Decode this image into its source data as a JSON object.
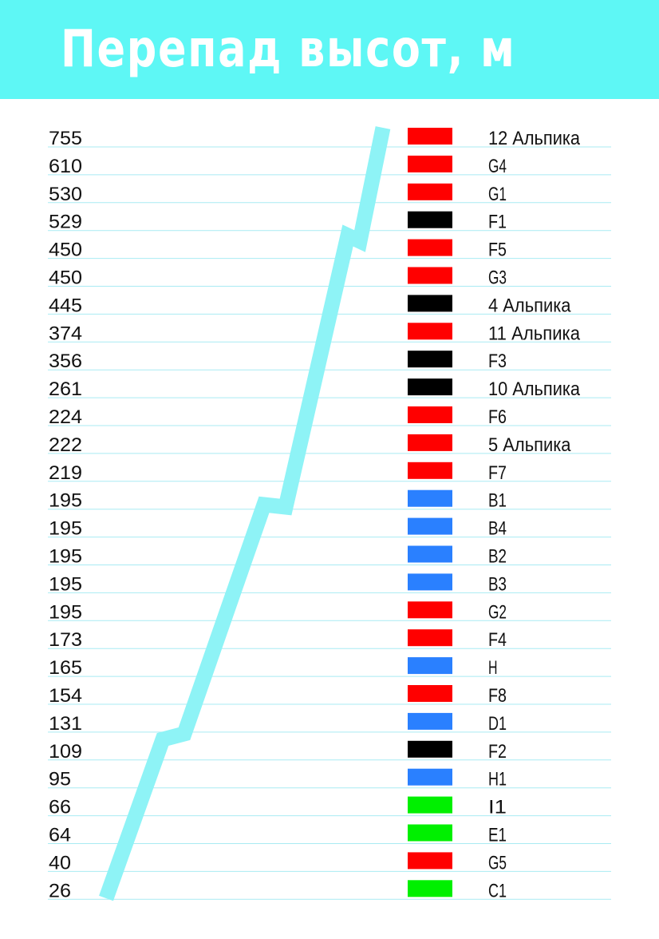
{
  "title": "Перепад высот, м",
  "colors": {
    "header_bg": "#5ef7f5",
    "title_text": "#ffffff",
    "profile_line": "#8ef3f6",
    "row_rule": "#a9ebf3",
    "red": "#ff0000",
    "black": "#000000",
    "blue": "#2a80ff",
    "green": "#00f000"
  },
  "chart_data": {
    "type": "table",
    "title": "Перепад высот, м",
    "columns": [
      "value",
      "difficulty_color",
      "trail"
    ],
    "rows": [
      {
        "value": 755,
        "color": "red",
        "label": "12 Альпика"
      },
      {
        "value": 610,
        "color": "red",
        "label": "G4"
      },
      {
        "value": 530,
        "color": "red",
        "label": "G1"
      },
      {
        "value": 529,
        "color": "black",
        "label": "F1"
      },
      {
        "value": 450,
        "color": "red",
        "label": "F5"
      },
      {
        "value": 450,
        "color": "red",
        "label": "G3"
      },
      {
        "value": 445,
        "color": "black",
        "label": "4 Альпика"
      },
      {
        "value": 374,
        "color": "red",
        "label": "11 Альпика"
      },
      {
        "value": 356,
        "color": "black",
        "label": "F3"
      },
      {
        "value": 261,
        "color": "black",
        "label": "10 Альпика"
      },
      {
        "value": 224,
        "color": "red",
        "label": "F6"
      },
      {
        "value": 222,
        "color": "red",
        "label": "5 Альпика"
      },
      {
        "value": 219,
        "color": "red",
        "label": "F7"
      },
      {
        "value": 195,
        "color": "blue",
        "label": "B1"
      },
      {
        "value": 195,
        "color": "blue",
        "label": "B4"
      },
      {
        "value": 195,
        "color": "blue",
        "label": "B2"
      },
      {
        "value": 195,
        "color": "blue",
        "label": "B3"
      },
      {
        "value": 195,
        "color": "red",
        "label": "G2"
      },
      {
        "value": 173,
        "color": "red",
        "label": "F4"
      },
      {
        "value": 165,
        "color": "blue",
        "label": "H"
      },
      {
        "value": 154,
        "color": "red",
        "label": "F8"
      },
      {
        "value": 131,
        "color": "blue",
        "label": "D1"
      },
      {
        "value": 109,
        "color": "black",
        "label": "F2"
      },
      {
        "value": 95,
        "color": "blue",
        "label": "H1"
      },
      {
        "value": 66,
        "color": "green",
        "label": "I1"
      },
      {
        "value": 64,
        "color": "green",
        "label": "E1"
      },
      {
        "value": 40,
        "color": "red",
        "label": "G5"
      },
      {
        "value": 26,
        "color": "green",
        "label": "C1"
      }
    ]
  }
}
